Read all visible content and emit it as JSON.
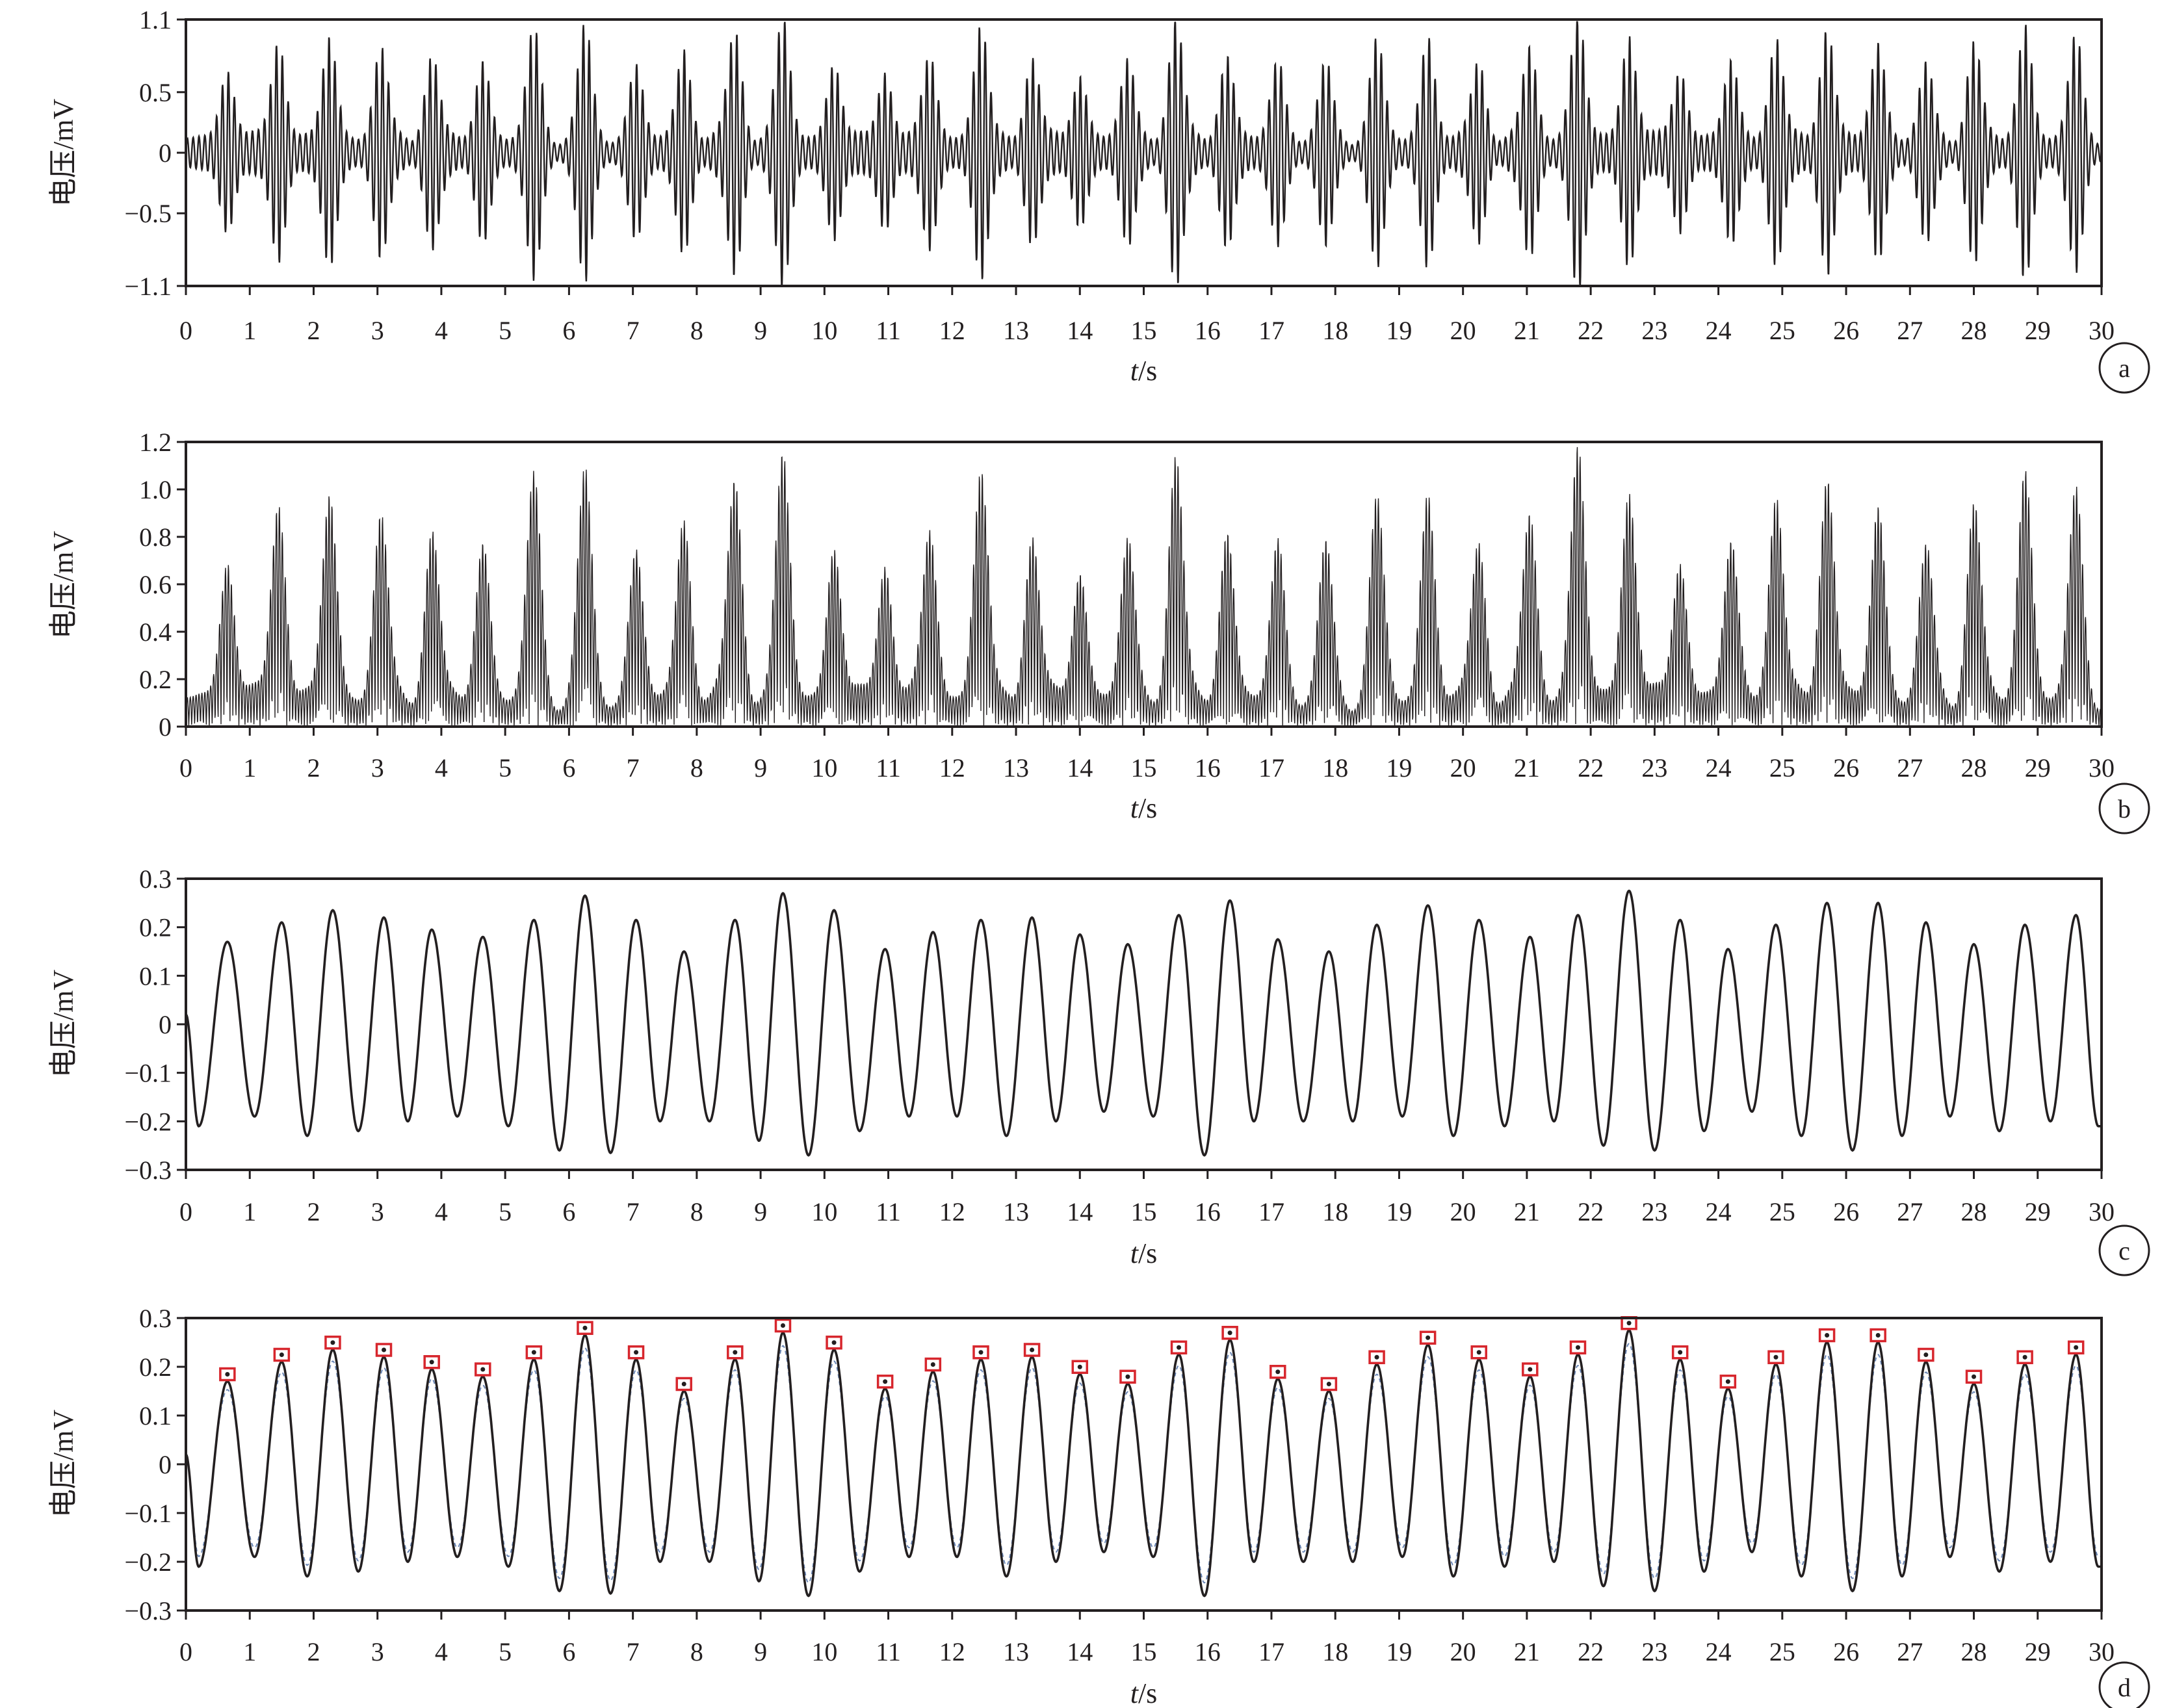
{
  "colors": {
    "trace": "#231f20",
    "axis": "#231f20",
    "marker": "#d7262d",
    "detected_dot": "#231f20",
    "overlay": "#6a86b5"
  },
  "chart_data": [
    {
      "panel": "a",
      "type": "line",
      "xlabel_italic": "t",
      "xlabel_unit": "/s",
      "ylabel": "电压/mV",
      "xlim": [
        0,
        30
      ],
      "ylim": [
        -1.1,
        1.1
      ],
      "x_ticks": [
        0,
        1,
        2,
        3,
        4,
        5,
        6,
        7,
        8,
        9,
        10,
        11,
        12,
        13,
        14,
        15,
        16,
        17,
        18,
        19,
        20,
        21,
        22,
        23,
        24,
        25,
        26,
        27,
        28,
        29,
        30
      ],
      "y_ticks": [
        -1.1,
        -0.5,
        0,
        0.5,
        1.1
      ],
      "y_tick_labels": [
        "−1.1",
        "−0.5",
        "0",
        "0.5",
        "1.1"
      ],
      "grid": false,
      "series": [
        {
          "style": "dense oscillation (~11 Hz) with amplitude envelope peaking at each beat",
          "beat_times": [
            0.65,
            1.45,
            2.25,
            3.05,
            3.85,
            4.65,
            5.45,
            6.25,
            7.05,
            7.8,
            8.6,
            9.35,
            10.15,
            10.95,
            11.65,
            12.45,
            13.25,
            14.0,
            14.75,
            15.5,
            16.3,
            17.1,
            17.85,
            18.65,
            19.45,
            20.25,
            21.05,
            21.8,
            22.6,
            23.4,
            24.2,
            24.9,
            25.7,
            26.5,
            27.25,
            28.0,
            28.8,
            29.6
          ],
          "beat_peaks": [
            0.6,
            0.85,
            0.85,
            0.75,
            0.7,
            0.65,
            0.9,
            0.9,
            0.6,
            0.75,
            0.9,
            1.0,
            0.65,
            0.6,
            0.7,
            0.95,
            0.7,
            0.55,
            0.65,
            1.0,
            0.7,
            0.65,
            0.6,
            0.8,
            0.85,
            0.65,
            0.75,
            1.05,
            0.9,
            0.6,
            0.65,
            0.85,
            0.95,
            0.8,
            0.6,
            0.8,
            0.95,
            0.85
          ]
        }
      ]
    },
    {
      "panel": "b",
      "type": "line",
      "xlabel_italic": "t",
      "xlabel_unit": "/s",
      "ylabel": "电压/mV",
      "xlim": [
        0,
        30
      ],
      "ylim": [
        0,
        1.2
      ],
      "x_ticks": [
        0,
        1,
        2,
        3,
        4,
        5,
        6,
        7,
        8,
        9,
        10,
        11,
        12,
        13,
        14,
        15,
        16,
        17,
        18,
        19,
        20,
        21,
        22,
        23,
        24,
        25,
        26,
        27,
        28,
        29,
        30
      ],
      "y_ticks": [
        0,
        0.2,
        0.4,
        0.6,
        0.8,
        1.0,
        1.2
      ],
      "y_tick_labels": [
        "0",
        "0.2",
        "0.4",
        "0.6",
        "0.8",
        "1.0",
        "1.2"
      ],
      "grid": false,
      "series": [
        {
          "style": "rectified (absolute) signal of panel a",
          "beat_peaks": [
            0.67,
            0.91,
            0.97,
            0.76,
            0.7,
            0.66,
            0.96,
            0.97,
            0.62,
            0.72,
            0.95,
            1.0,
            0.6,
            0.63,
            0.66,
            0.98,
            0.65,
            0.52,
            0.65,
            1.05,
            0.66,
            0.6,
            0.62,
            0.81,
            0.9,
            0.74,
            0.75,
            1.04,
            0.98,
            0.57,
            0.62,
            0.93,
            1.0,
            0.9,
            0.63,
            0.66,
            0.88,
            1.03
          ]
        }
      ]
    },
    {
      "panel": "c",
      "type": "line",
      "xlabel_italic": "t",
      "xlabel_unit": "/s",
      "ylabel": "电压/mV",
      "xlim": [
        0,
        30
      ],
      "ylim": [
        -0.3,
        0.3
      ],
      "x_ticks": [
        0,
        1,
        2,
        3,
        4,
        5,
        6,
        7,
        8,
        9,
        10,
        11,
        12,
        13,
        14,
        15,
        16,
        17,
        18,
        19,
        20,
        21,
        22,
        23,
        24,
        25,
        26,
        27,
        28,
        29,
        30
      ],
      "y_ticks": [
        -0.3,
        -0.2,
        -0.1,
        0,
        0.1,
        0.2,
        0.3
      ],
      "y_tick_labels": [
        "−0.3",
        "−0.2",
        "−0.1",
        "0",
        "0.1",
        "0.2",
        "0.3"
      ],
      "grid": false,
      "series": [
        {
          "style": "smooth filtered respiratory-like waveform",
          "peak_times": [
            0.65,
            1.5,
            2.3,
            3.1,
            3.85,
            4.65,
            5.45,
            6.25,
            7.05,
            7.8,
            8.6,
            9.35,
            10.15,
            10.95,
            11.7,
            12.45,
            13.25,
            14.0,
            14.75,
            15.55,
            16.35,
            17.1,
            17.9,
            18.65,
            19.45,
            20.25,
            21.05,
            21.8,
            22.6,
            23.4,
            24.15,
            24.9,
            25.7,
            26.5,
            27.25,
            28.0,
            28.8,
            29.6
          ],
          "peak_values": [
            0.17,
            0.21,
            0.235,
            0.22,
            0.195,
            0.18,
            0.215,
            0.265,
            0.215,
            0.15,
            0.215,
            0.27,
            0.235,
            0.155,
            0.19,
            0.215,
            0.22,
            0.185,
            0.165,
            0.225,
            0.255,
            0.175,
            0.15,
            0.205,
            0.245,
            0.215,
            0.18,
            0.225,
            0.275,
            0.215,
            0.155,
            0.205,
            0.25,
            0.25,
            0.21,
            0.165,
            0.205,
            0.225
          ],
          "trough_values": [
            -0.21,
            -0.19,
            -0.23,
            -0.22,
            -0.2,
            -0.19,
            -0.21,
            -0.26,
            -0.265,
            -0.2,
            -0.2,
            -0.24,
            -0.27,
            -0.22,
            -0.19,
            -0.19,
            -0.23,
            -0.2,
            -0.18,
            -0.19,
            -0.27,
            -0.2,
            -0.2,
            -0.2,
            -0.19,
            -0.23,
            -0.21,
            -0.2,
            -0.25,
            -0.26,
            -0.22,
            -0.18,
            -0.23,
            -0.26,
            -0.23,
            -0.19,
            -0.22,
            -0.2,
            -0.21
          ]
        }
      ]
    },
    {
      "panel": "d",
      "type": "line",
      "xlabel_italic": "t",
      "xlabel_unit": "/s",
      "ylabel": "电压/mV",
      "xlim": [
        0,
        30
      ],
      "ylim": [
        -0.3,
        0.3
      ],
      "x_ticks": [
        0,
        1,
        2,
        3,
        4,
        5,
        6,
        7,
        8,
        9,
        10,
        11,
        12,
        13,
        14,
        15,
        16,
        17,
        18,
        19,
        20,
        21,
        22,
        23,
        24,
        25,
        26,
        27,
        28,
        29,
        30
      ],
      "y_ticks": [
        -0.3,
        -0.2,
        -0.1,
        0,
        0.1,
        0.2,
        0.3
      ],
      "y_tick_labels": [
        "−0.3",
        "−0.2",
        "−0.1",
        "0",
        "0.1",
        "0.2",
        "0.3"
      ],
      "grid": false,
      "series": [
        {
          "style": "filtered waveform of panel c with detected peaks marked by red squares (one per peak)"
        }
      ]
    }
  ]
}
